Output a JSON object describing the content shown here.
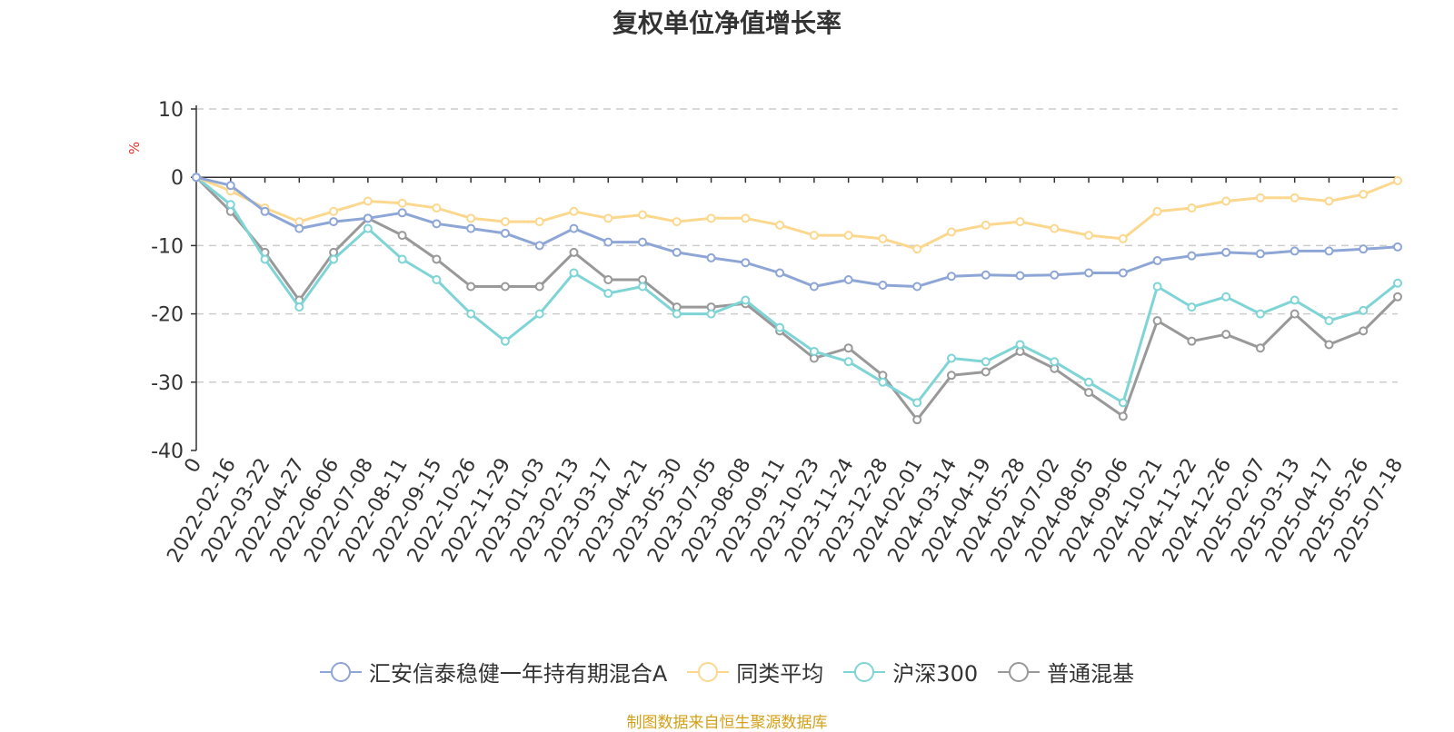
{
  "chart_data": {
    "type": "line",
    "title": "复权单位净值增长率",
    "ylabel": "%",
    "ylim": [
      -40,
      10
    ],
    "yticks": [
      10,
      0,
      -10,
      -20,
      -30,
      -40
    ],
    "xticks": [
      "0",
      "2022-02-16",
      "2022-03-22",
      "2022-04-27",
      "2022-06-06",
      "2022-07-08",
      "2022-08-11",
      "2022-09-15",
      "2022-10-26",
      "2022-11-29",
      "2023-01-03",
      "2023-02-13",
      "2023-03-17",
      "2023-04-21",
      "2023-05-30",
      "2023-07-05",
      "2023-08-08",
      "2023-09-11",
      "2023-10-23",
      "2023-11-24",
      "2023-12-28",
      "2024-02-01",
      "2024-03-14",
      "2024-04-19",
      "2024-05-28",
      "2024-07-02",
      "2024-08-05",
      "2024-09-06",
      "2024-10-21",
      "2024-11-22",
      "2024-12-26",
      "2025-02-07",
      "2025-03-13",
      "2025-04-17",
      "2025-05-26",
      "2025-07-18"
    ],
    "grid": "horizontal dashed",
    "legend_position": "bottom",
    "series": [
      {
        "name": "汇安信泰稳健一年持有期混合A",
        "color": "#8ea6d6",
        "values": [
          0,
          -1.2,
          -5,
          -7.5,
          -6.5,
          -6,
          -5.2,
          -6.8,
          -7.5,
          -8.2,
          -10,
          -7.5,
          -9.5,
          -9.5,
          -11,
          -11.8,
          -12.5,
          -14,
          -16,
          -15,
          -15.8,
          -16,
          -14.5,
          -14.3,
          -14.4,
          -14.3,
          -14,
          -14,
          -12.2,
          -11.5,
          -11,
          -11.2,
          -10.8,
          -10.8,
          -10.5,
          -10.2
        ]
      },
      {
        "name": "同类平均",
        "color": "#fcd88f",
        "values": [
          0,
          -2,
          -4.5,
          -6.5,
          -5,
          -3.5,
          -3.8,
          -4.5,
          -6,
          -6.5,
          -6.5,
          -5,
          -6,
          -5.5,
          -6.5,
          -6,
          -6,
          -7,
          -8.5,
          -8.5,
          -9,
          -10.5,
          -8,
          -7,
          -6.5,
          -7.5,
          -8.5,
          -9,
          -5,
          -4.5,
          -3.5,
          -3,
          -3,
          -3.5,
          -2.5,
          -0.5
        ]
      },
      {
        "name": "沪深300",
        "color": "#7fd4d6",
        "values": [
          0,
          -4,
          -12,
          -19,
          -12,
          -7.5,
          -12,
          -15,
          -20,
          -24,
          -20,
          -14,
          -17,
          -16,
          -20,
          -20,
          -18,
          -22,
          -25.5,
          -27,
          -30,
          -33,
          -26.5,
          -27,
          -24.5,
          -27,
          -30,
          -33,
          -16,
          -19,
          -17.5,
          -20,
          -18,
          -21,
          -19.5,
          -15.5
        ]
      },
      {
        "name": "普通混基",
        "color": "#999999",
        "values": [
          0,
          -5,
          -11,
          -18,
          -11,
          -6,
          -8.5,
          -12,
          -16,
          -16,
          -16,
          -11,
          -15,
          -15,
          -19,
          -19,
          -18.5,
          -22.5,
          -26.5,
          -25,
          -29,
          -35.5,
          -29,
          -28.5,
          -25.5,
          -28,
          -31.5,
          -35,
          -21,
          -24,
          -23,
          -25,
          -20,
          -24.5,
          -22.5,
          -17.5
        ]
      }
    ]
  },
  "footer": {
    "source": "制图数据来自恒生聚源数据库"
  }
}
